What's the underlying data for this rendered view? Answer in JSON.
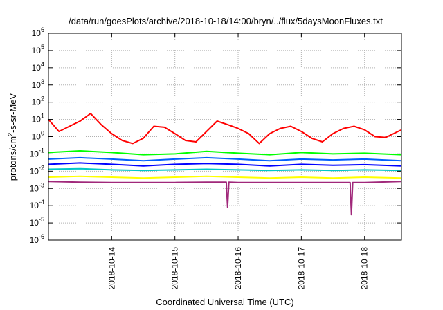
{
  "chart_data": {
    "type": "line",
    "title": "/data/run/goesPlots/archive/2018-10-18/14:00/bryn/../flux/5daysMoonFluxes.txt",
    "xlabel": "Coordinated Universal Time (UTC)",
    "ylabel": {
      "base": "protons/cm",
      "sup": "2",
      "rest": "-s-sr-MeV"
    },
    "x_scale": "date",
    "x_range": [
      "2018-10-13T00:00",
      "2018-10-18T14:00"
    ],
    "x_ticks": [
      "2018-10-14",
      "2018-10-15",
      "2018-10-16",
      "2018-10-17",
      "2018-10-18"
    ],
    "y_scale": "log",
    "ylim": [
      1e-06,
      1000000.0
    ],
    "y_ticks": [
      {
        "base": "10",
        "exp": "-6"
      },
      {
        "base": "10",
        "exp": "-5"
      },
      {
        "base": "10",
        "exp": "-4"
      },
      {
        "base": "10",
        "exp": "-3"
      },
      {
        "base": "10",
        "exp": "-2"
      },
      {
        "base": "10",
        "exp": "-1"
      },
      {
        "base": "10",
        "exp": "0"
      },
      {
        "base": "10",
        "exp": "1"
      },
      {
        "base": "10",
        "exp": "2"
      },
      {
        "base": "10",
        "exp": "3"
      },
      {
        "base": "10",
        "exp": "4"
      },
      {
        "base": "10",
        "exp": "5"
      },
      {
        "base": "10",
        "exp": "6"
      }
    ],
    "grid": true,
    "legend": "none",
    "series": [
      {
        "color": "#ff0000",
        "x": [
          "2018-10-13T00:00",
          "2018-10-13T04:00",
          "2018-10-13T08:00",
          "2018-10-13T12:00",
          "2018-10-13T16:00",
          "2018-10-13T20:00",
          "2018-10-14T00:00",
          "2018-10-14T04:00",
          "2018-10-14T08:00",
          "2018-10-14T12:00",
          "2018-10-14T16:00",
          "2018-10-14T20:00",
          "2018-10-15T00:00",
          "2018-10-15T04:00",
          "2018-10-15T08:00",
          "2018-10-15T12:00",
          "2018-10-15T16:00",
          "2018-10-15T20:00",
          "2018-10-16T00:00",
          "2018-10-16T04:00",
          "2018-10-16T08:00",
          "2018-10-16T12:00",
          "2018-10-16T16:00",
          "2018-10-16T20:00",
          "2018-10-17T00:00",
          "2018-10-17T04:00",
          "2018-10-17T08:00",
          "2018-10-17T12:00",
          "2018-10-17T16:00",
          "2018-10-17T20:00",
          "2018-10-18T00:00",
          "2018-10-18T04:00",
          "2018-10-18T08:00",
          "2018-10-18T14:00"
        ],
        "y": [
          10,
          2,
          4,
          8,
          22,
          5,
          1.5,
          0.6,
          0.4,
          0.8,
          4,
          3.5,
          1.5,
          0.6,
          0.5,
          2,
          8,
          5,
          3,
          1.5,
          0.4,
          1.5,
          3,
          4,
          2,
          0.8,
          0.5,
          1.5,
          3,
          4,
          2.5,
          1,
          0.9,
          2.5
        ]
      },
      {
        "color": "#00ff00",
        "x": [
          "2018-10-13T00:00",
          "2018-10-13T12:00",
          "2018-10-14T00:00",
          "2018-10-14T12:00",
          "2018-10-15T00:00",
          "2018-10-15T12:00",
          "2018-10-16T00:00",
          "2018-10-16T12:00",
          "2018-10-17T00:00",
          "2018-10-17T12:00",
          "2018-10-18T00:00",
          "2018-10-18T14:00"
        ],
        "y": [
          0.12,
          0.15,
          0.12,
          0.09,
          0.1,
          0.14,
          0.11,
          0.09,
          0.12,
          0.1,
          0.11,
          0.09
        ]
      },
      {
        "color": "#0060ff",
        "x": [
          "2018-10-13T00:00",
          "2018-10-13T12:00",
          "2018-10-14T00:00",
          "2018-10-14T12:00",
          "2018-10-15T00:00",
          "2018-10-15T12:00",
          "2018-10-16T00:00",
          "2018-10-16T12:00",
          "2018-10-17T00:00",
          "2018-10-17T12:00",
          "2018-10-18T00:00",
          "2018-10-18T14:00"
        ],
        "y": [
          0.05,
          0.06,
          0.05,
          0.04,
          0.05,
          0.06,
          0.05,
          0.04,
          0.05,
          0.045,
          0.05,
          0.04
        ]
      },
      {
        "color": "#0000ff",
        "x": [
          "2018-10-13T00:00",
          "2018-10-13T12:00",
          "2018-10-14T00:00",
          "2018-10-14T12:00",
          "2018-10-15T00:00",
          "2018-10-15T12:00",
          "2018-10-16T00:00",
          "2018-10-16T12:00",
          "2018-10-17T00:00",
          "2018-10-17T12:00",
          "2018-10-18T00:00",
          "2018-10-18T14:00"
        ],
        "y": [
          0.025,
          0.03,
          0.025,
          0.02,
          0.025,
          0.028,
          0.025,
          0.02,
          0.025,
          0.022,
          0.024,
          0.02
        ]
      },
      {
        "color": "#00c8c8",
        "x": [
          "2018-10-13T00:00",
          "2018-10-13T12:00",
          "2018-10-14T00:00",
          "2018-10-14T12:00",
          "2018-10-15T00:00",
          "2018-10-15T12:00",
          "2018-10-16T00:00",
          "2018-10-16T12:00",
          "2018-10-17T00:00",
          "2018-10-17T12:00",
          "2018-10-18T00:00",
          "2018-10-18T14:00"
        ],
        "y": [
          0.013,
          0.014,
          0.012,
          0.011,
          0.012,
          0.013,
          0.012,
          0.011,
          0.012,
          0.011,
          0.012,
          0.011
        ]
      },
      {
        "color": "#ffff00",
        "x": [
          "2018-10-13T00:00",
          "2018-10-13T12:00",
          "2018-10-14T00:00",
          "2018-10-14T12:00",
          "2018-10-15T00:00",
          "2018-10-15T12:00",
          "2018-10-16T00:00",
          "2018-10-16T12:00",
          "2018-10-17T00:00",
          "2018-10-17T12:00",
          "2018-10-18T00:00",
          "2018-10-18T14:00"
        ],
        "y": [
          0.0045,
          0.005,
          0.0045,
          0.004,
          0.0045,
          0.005,
          0.0045,
          0.004,
          0.0045,
          0.004,
          0.0045,
          0.004
        ]
      },
      {
        "color": "#a0287a",
        "x": [
          "2018-10-13T00:00",
          "2018-10-13T12:00",
          "2018-10-14T00:00",
          "2018-10-14T12:00",
          "2018-10-15T00:00",
          "2018-10-15T12:00",
          "2018-10-15T19:30",
          "2018-10-15T20:00",
          "2018-10-15T20:30",
          "2018-10-16T00:00",
          "2018-10-16T12:00",
          "2018-10-17T00:00",
          "2018-10-17T12:00",
          "2018-10-17T18:30",
          "2018-10-17T19:00",
          "2018-10-17T19:30",
          "2018-10-18T00:00",
          "2018-10-18T14:00"
        ],
        "y": [
          0.0025,
          0.0023,
          0.0022,
          0.0022,
          0.0022,
          0.0023,
          0.0023,
          8e-05,
          0.0023,
          0.0022,
          0.0022,
          0.0022,
          0.0022,
          0.0022,
          3e-05,
          0.0022,
          0.0022,
          0.0025
        ]
      }
    ]
  }
}
